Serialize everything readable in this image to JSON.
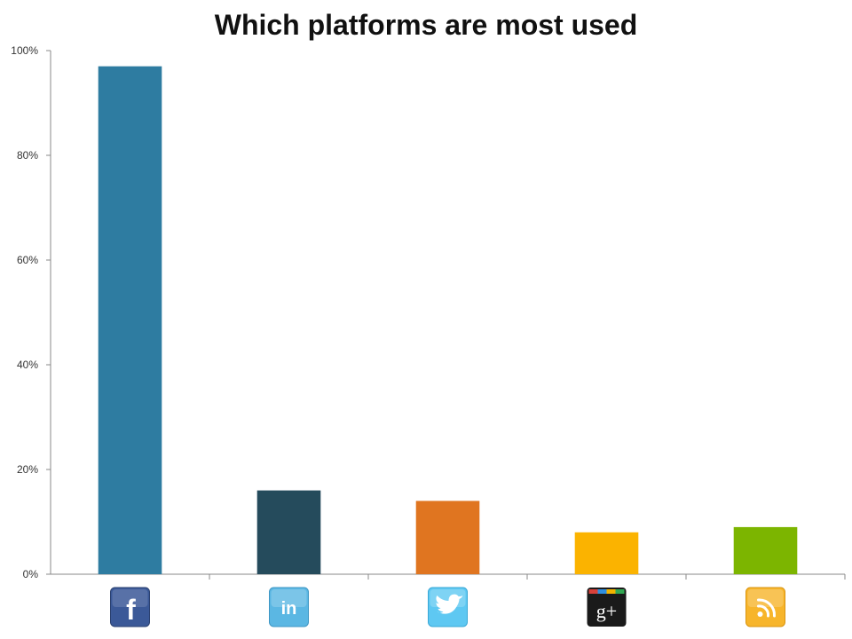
{
  "chart_data": {
    "type": "bar",
    "title": "Which platforms are most used",
    "xlabel": "",
    "ylabel": "",
    "categories": [
      "Facebook",
      "LinkedIn",
      "Twitter",
      "Google+",
      "RSS"
    ],
    "category_icons": [
      "facebook-icon",
      "linkedin-icon",
      "twitter-icon",
      "google-plus-icon",
      "rss-icon"
    ],
    "values": [
      97,
      16,
      14,
      8,
      9
    ],
    "colors": [
      "#2e7ca1",
      "#254b5c",
      "#e07520",
      "#fbb300",
      "#7cb500"
    ],
    "ylim": [
      0,
      100
    ],
    "yticks": [
      0,
      20,
      40,
      60,
      80,
      100
    ],
    "ytick_labels": [
      "0%",
      "20%",
      "40%",
      "60%",
      "80%",
      "100%"
    ],
    "grid": false,
    "legend": "none"
  }
}
